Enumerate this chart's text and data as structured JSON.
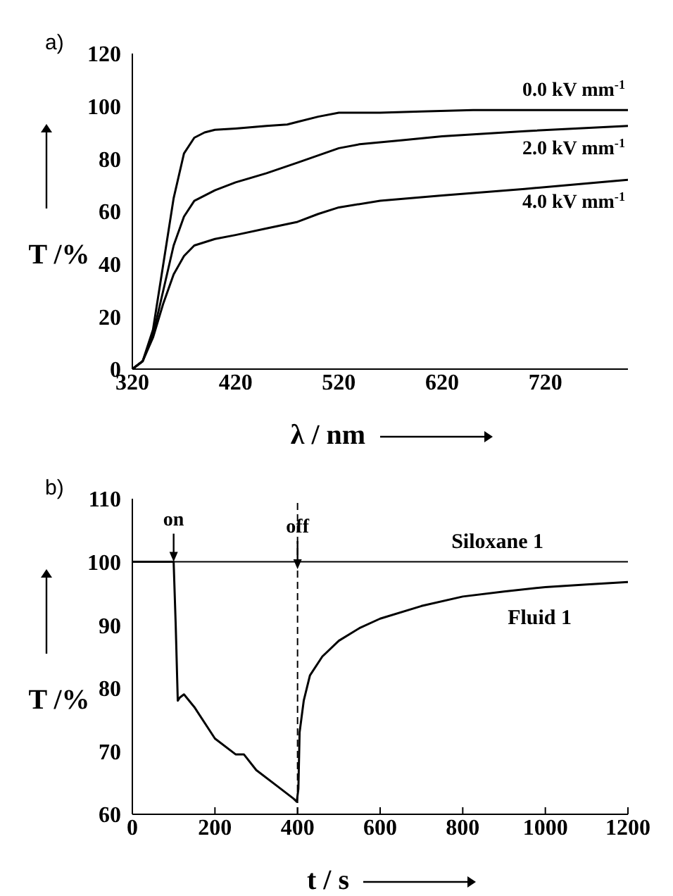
{
  "chart_data": [
    {
      "type": "line",
      "title": "a)",
      "xlabel": "λ / nm",
      "ylabel": "T /%",
      "xlim": [
        320,
        800
      ],
      "xticks": [
        320,
        420,
        520,
        620,
        720
      ],
      "ylim": [
        0,
        120
      ],
      "yticks": [
        0,
        20,
        40,
        60,
        80,
        100,
        120
      ],
      "marker": "none",
      "line_style": "solid",
      "series": [
        {
          "name": "0.0 kV mm$^{-1}$",
          "color": "#000000",
          "x": [
            320,
            330,
            340,
            350,
            360,
            370,
            380,
            390,
            400,
            420,
            450,
            470,
            480,
            500,
            520,
            560,
            600,
            650,
            800
          ],
          "values": [
            0,
            3,
            15,
            40,
            65,
            82,
            88,
            90,
            91,
            91.5,
            92.5,
            93,
            94,
            96,
            97.5,
            97.5,
            98,
            98.5,
            98.5
          ]
        },
        {
          "name": "2.0 kV mm$^{-1}$",
          "color": "#000000",
          "x": [
            320,
            330,
            340,
            350,
            360,
            370,
            380,
            400,
            420,
            450,
            480,
            520,
            540,
            580,
            620,
            700,
            800
          ],
          "values": [
            0,
            3,
            13,
            30,
            47,
            58,
            64,
            68,
            71,
            74.5,
            78.5,
            84,
            85.5,
            87,
            88.5,
            90.5,
            92.5
          ]
        },
        {
          "name": "4.0 kV mm$^{-1}$",
          "color": "#000000",
          "x": [
            320,
            330,
            340,
            350,
            360,
            370,
            380,
            400,
            420,
            450,
            480,
            500,
            520,
            560,
            620,
            700,
            800
          ],
          "values": [
            0,
            3,
            12,
            25,
            36,
            43,
            47,
            49.5,
            51,
            53.5,
            56,
            59,
            61.5,
            64,
            66,
            68.5,
            72
          ]
        }
      ]
    },
    {
      "type": "line",
      "title": "b)",
      "xlabel": "t / s",
      "ylabel": "T /%",
      "xlim": [
        0,
        1200
      ],
      "xticks": [
        0,
        200,
        400,
        600,
        800,
        1000,
        1200
      ],
      "ylim": [
        60,
        110
      ],
      "yticks": [
        60,
        70,
        80,
        90,
        100,
        110
      ],
      "marker": "none",
      "line_style": "solid",
      "annotations": [
        {
          "text": "on",
          "x": 100,
          "y": 100
        }
      ],
      "ref_lines": [
        {
          "axis": "x",
          "value": 400,
          "label": "off",
          "line_style": "dashed",
          "color": "#000000"
        }
      ],
      "series": [
        {
          "name": "Siloxane 1",
          "color": "#000000",
          "x": [
            0,
            1200
          ],
          "values": [
            100,
            100
          ]
        },
        {
          "name": "Fluid 1",
          "color": "#000000",
          "x": [
            0,
            100,
            105,
            110,
            115,
            125,
            150,
            200,
            250,
            270,
            300,
            350,
            390,
            398,
            402,
            405,
            415,
            430,
            460,
            500,
            550,
            600,
            700,
            800,
            900,
            1000,
            1100,
            1200
          ],
          "values": [
            100,
            100,
            90,
            78,
            78.5,
            79,
            77,
            72,
            69.5,
            69.5,
            67,
            64.5,
            62.5,
            62,
            64,
            73,
            78,
            82,
            85,
            87.5,
            89.5,
            91,
            93,
            94.5,
            95.3,
            96,
            96.4,
            96.8
          ]
        }
      ]
    }
  ]
}
